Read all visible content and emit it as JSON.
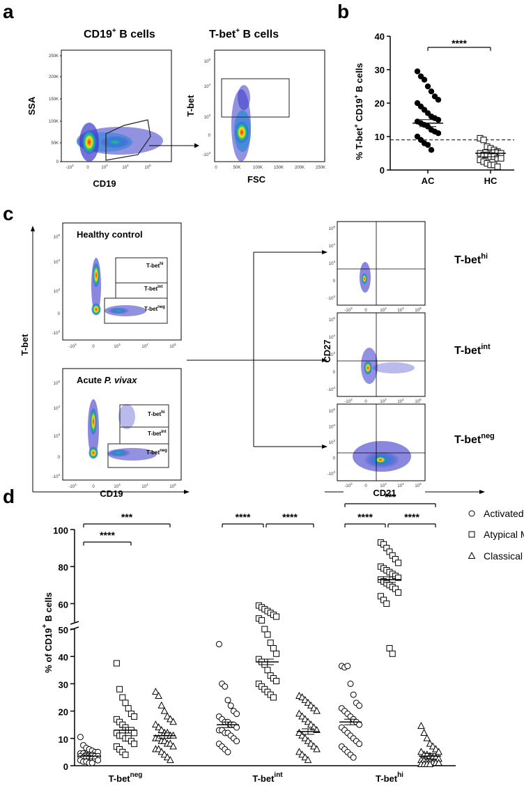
{
  "panel_labels": {
    "a": "a",
    "b": "b",
    "c": "c",
    "d": "d"
  },
  "panel_a": {
    "left_title": "CD19",
    "left_title_sup": "+",
    "left_title_rest": " B cells",
    "right_title": "T-bet",
    "right_title_sup": "+",
    "right_title_rest": " B cells",
    "left_y_axis": "SSA",
    "left_x_axis": "CD19",
    "right_y_axis": "T-bet",
    "right_x_axis": "FSC",
    "left_y_ticks": [
      "250K",
      "200K",
      "150K",
      "100K",
      "50K",
      "0"
    ],
    "left_x_ticks": [
      "-10",
      "0",
      "10",
      "10",
      "10"
    ],
    "left_x_exps": [
      "3",
      "",
      "3",
      "4",
      "5"
    ],
    "right_y_ticks": [
      "10",
      "10",
      "10",
      "0",
      "-10"
    ],
    "right_y_exps": [
      "5",
      "4",
      "3",
      "",
      "3"
    ],
    "right_x_ticks": [
      "0",
      "50K",
      "100K",
      "150K",
      "200K",
      "250K"
    ]
  },
  "panel_c": {
    "healthy_label": "Healthy control",
    "acute_label": "Acute ",
    "acute_italic": "P. vivax",
    "y_axis": "T-bet",
    "x_axis": "CD19",
    "right_y_axis": "CD27",
    "right_x_axis": "CD21",
    "gate_base": "T-bet",
    "gate_hi": "hi",
    "gate_int": "int",
    "gate_neg": "neg",
    "log_ticks": [
      "10",
      "10",
      "10",
      "0",
      "-10"
    ],
    "log_exps": [
      "5",
      "4",
      "3",
      "",
      "3"
    ],
    "x_ticks": [
      "-10",
      "0",
      "10",
      "10",
      "10"
    ],
    "x_exps": [
      "3",
      "",
      "3",
      "4",
      "5"
    ]
  },
  "colors": {
    "dot_fill": "#000000",
    "axis": "#000000",
    "gate": "#333333",
    "dens_high": "#e8241e",
    "dens_mid": "#f6e21a",
    "dens_low": "#22c46b",
    "dens_base": "#3a39c8"
  },
  "chart_data": [
    {
      "type": "scatter",
      "panel": "b",
      "title": "",
      "ylabel_parts": [
        "% T-bet",
        "+",
        " CD19",
        "+",
        " B cells"
      ],
      "ylabel": "% T-bet+ CD19+ B cells",
      "categories": [
        "AC",
        "HC"
      ],
      "ylim": [
        0,
        40
      ],
      "yticks": [
        "0",
        "10",
        "20",
        "30",
        "40"
      ],
      "threshold": 9,
      "significance": "****",
      "series": [
        {
          "name": "AC",
          "marker": "filled-circle",
          "mean": 14,
          "values": [
            29.5,
            28,
            27,
            25,
            23.5,
            22,
            21,
            20,
            19,
            18,
            17,
            16,
            15.5,
            15,
            14.5,
            14,
            13.5,
            13,
            12,
            11.5,
            11,
            10,
            9,
            8,
            7.5,
            6
          ]
        },
        {
          "name": "HC",
          "marker": "open-square",
          "mean": 5,
          "values": [
            9.5,
            9,
            7,
            6.5,
            6,
            5.5,
            5,
            5,
            4.5,
            4.5,
            4,
            4,
            3.5,
            3.5,
            3,
            2.5,
            2,
            1.5,
            1.5,
            1
          ]
        }
      ]
    },
    {
      "type": "scatter",
      "panel": "d",
      "ylabel": "% of CD19+ B cells",
      "ylabel_text": "%  of CD19",
      "ylabel_sup": "+",
      "ylabel_rest": " B cells",
      "y_lower": [
        0,
        50
      ],
      "y_upper": [
        50,
        100
      ],
      "yticks_lower": [
        "0",
        "10",
        "20",
        "30",
        "40",
        "50"
      ],
      "yticks_upper": [
        "60",
        "80",
        "100"
      ],
      "groups": [
        {
          "label": "T-bet",
          "sup": "neg",
          "activated": {
            "mean": 3.5,
            "values": [
              10.5,
              7.5,
              6.5,
              6,
              5.5,
              5,
              5,
              4.5,
              4.5,
              4,
              4,
              4,
              3.5,
              3.5,
              3.5,
              3,
              3,
              3,
              2.5,
              2.5,
              2,
              2,
              1.5,
              1.5,
              1,
              1
            ]
          },
          "atypical": {
            "mean": 13,
            "values": [
              37.5,
              28,
              25,
              23,
              21,
              19,
              18,
              17,
              16,
              15,
              14,
              13,
              13,
              12,
              12,
              11,
              11,
              10,
              10,
              9,
              8,
              7,
              6,
              5,
              4
            ]
          },
          "classical": {
            "mean": 11,
            "values": [
              27,
              25.5,
              22,
              20,
              18,
              17,
              16,
              15,
              14,
              13,
              12,
              12,
              11,
              11,
              10,
              10,
              9,
              9,
              8,
              8,
              7,
              6,
              6,
              5,
              4,
              3,
              2
            ]
          }
        },
        {
          "label": "T-bet",
          "sup": "int",
          "activated": {
            "mean": 15,
            "values": [
              44.5,
              30,
              29,
              24,
              22,
              20,
              19,
              18,
              17,
              16,
              16,
              15,
              15,
              14,
              13,
              13,
              12,
              12,
              11,
              10,
              9,
              8,
              7,
              6,
              5
            ]
          },
          "atypical": {
            "mean": 38,
            "values": [
              59,
              58,
              57,
              56,
              55,
              54,
              53,
              52,
              51,
              50,
              48,
              45,
              43,
              41,
              39,
              38,
              37,
              35,
              33,
              32,
              31,
              30,
              29,
              28,
              27,
              26,
              25
            ]
          },
          "classical": {
            "mean": 12.5,
            "values": [
              25.5,
              25,
              24,
              23,
              22,
              21,
              20,
              19,
              18,
              17,
              16,
              15,
              14,
              13,
              12,
              11,
              10,
              9,
              8,
              7,
              6,
              5,
              4,
              3,
              2
            ]
          }
        },
        {
          "label": "T-bet",
          "sup": "hi",
          "activated": {
            "mean": 16,
            "values": [
              36.5,
              36,
              36.5,
              30,
              26,
              23,
              22,
              21,
              20,
              19,
              18,
              17,
              16,
              15,
              14,
              13,
              12,
              11,
              10,
              9,
              8,
              7,
              6,
              5,
              4,
              3
            ]
          },
          "atypical": {
            "mean": 73,
            "values": [
              93,
              92,
              90,
              88,
              86,
              84,
              82,
              80,
              79,
              78,
              77,
              76,
              75,
              74,
              73,
              72,
              71,
              70,
              69,
              68,
              66,
              64,
              62,
              60,
              43,
              41
            ]
          },
          "classical": {
            "mean": 3.5,
            "values": [
              14.5,
              12,
              10,
              8,
              7,
              6,
              5,
              5,
              4,
              4,
              3.5,
              3,
              3,
              2.5,
              2,
              2,
              1.5,
              1.5,
              1,
              1,
              1,
              0.5,
              0.5,
              0.5,
              0.5
            ]
          }
        }
      ],
      "significance": [
        {
          "label": "****",
          "group": 0,
          "from": "activated",
          "to": "atypical"
        },
        {
          "label": "***",
          "group": 0,
          "from": "activated",
          "to": "classical"
        },
        {
          "label": "****",
          "group": 1,
          "from": "activated",
          "to": "atypical"
        },
        {
          "label": "****",
          "group": 1,
          "from": "atypical",
          "to": "classical"
        },
        {
          "label": "***",
          "group": 2,
          "from": "activated",
          "to": "classical"
        },
        {
          "label": "****",
          "group": 2,
          "from": "activated",
          "to": "atypical"
        },
        {
          "label": "****",
          "group": 2,
          "from": "atypical",
          "to": "classical"
        }
      ],
      "legend": [
        "Activated MBCs",
        "Atypical MBCs",
        "Classical MBCs"
      ],
      "legend_position": "top-right"
    }
  ]
}
